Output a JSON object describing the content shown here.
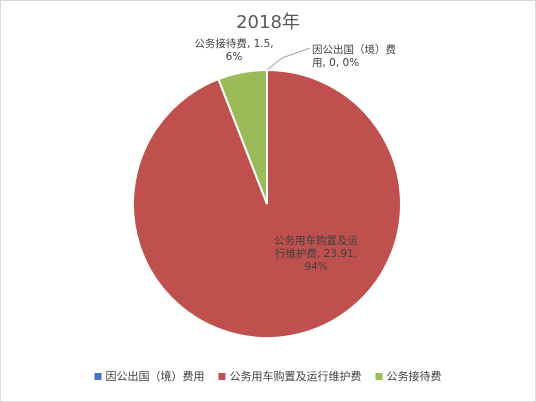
{
  "chart_data": {
    "type": "pie",
    "title": "2018年",
    "slices": [
      {
        "name": "因公出国（境）费用",
        "value": 0,
        "percent": "0%",
        "label_lines": [
          "因公出国（境）费",
          "用, 0, 0%"
        ],
        "color": "#4472c4"
      },
      {
        "name": "公务用车购置及运行维护费",
        "value": 23.91,
        "percent": "94%",
        "label_lines": [
          "公务用车购置及运",
          "行维护费, 23.91,",
          "94%"
        ],
        "color": "#c0504d"
      },
      {
        "name": "公务接待费",
        "value": 1.5,
        "percent": "6%",
        "label_lines": [
          "公务接待费, 1.5,",
          "6%"
        ],
        "color": "#9bbb59"
      }
    ],
    "legend_position": "bottom"
  }
}
